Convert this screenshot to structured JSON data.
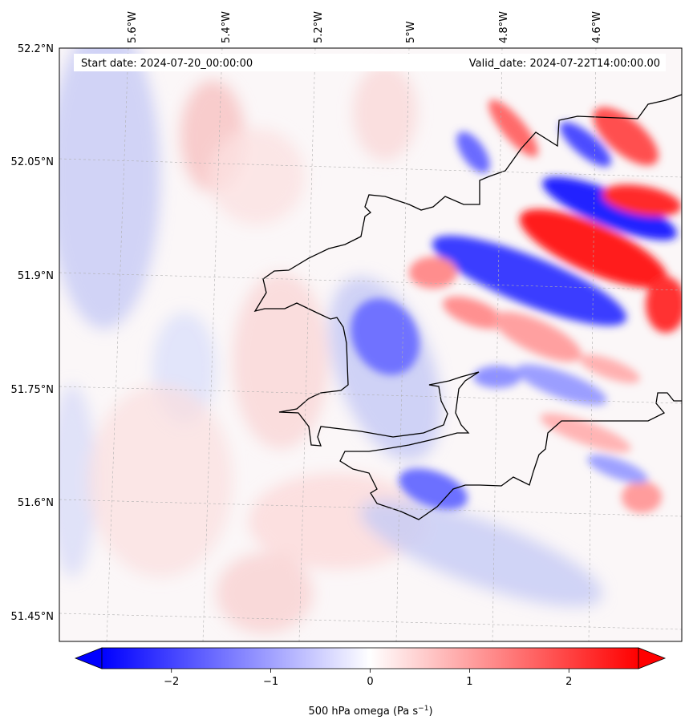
{
  "map": {
    "start_date": "Start date: 2024-07-20_00:00:00",
    "valid_date": "Valid_date: 2024-07-22T14:00:00.00",
    "lon_labels": [
      "5.6°W",
      "5.4°W",
      "5.2°W",
      "5°W",
      "4.8°W",
      "4.6°W"
    ],
    "lat_labels": [
      "52.2°N",
      "52.05°N",
      "51.9°N",
      "51.75°N",
      "51.6°N",
      "51.45°N"
    ],
    "colors": {
      "negative": "#0000ff",
      "neutral": "#ffffff",
      "positive": "#ff0000",
      "coastline": "#000000",
      "gridline": "#b0b0b0"
    }
  },
  "colorbar": {
    "label_main": "500 hPa omega (Pa s",
    "label_exp": "−1",
    "label_close": ")",
    "ticks": [
      "−2",
      "−1",
      "0",
      "1",
      "2"
    ],
    "tick_values": [
      -2,
      -1,
      0,
      1,
      2
    ],
    "range": [
      -2.7,
      2.7
    ],
    "extend": "both"
  }
}
